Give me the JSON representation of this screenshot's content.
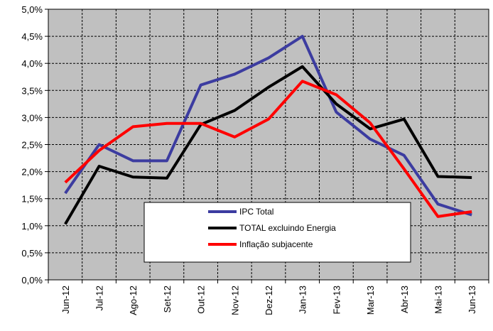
{
  "chart_data": {
    "type": "line",
    "categories": [
      "Jun-12",
      "Jul-12",
      "Ago-12",
      "Set-12",
      "Out-12",
      "Nov-12",
      "Dez-12",
      "Jan-13",
      "Fev-13",
      "Mar-13",
      "Abr-13",
      "Mai-13",
      "Jun-13"
    ],
    "series": [
      {
        "name": "IPC Total",
        "color": "#3c3ca0",
        "values": [
          1.6,
          2.5,
          2.2,
          2.2,
          3.6,
          3.8,
          4.1,
          4.5,
          3.1,
          2.6,
          2.3,
          1.4,
          1.2
        ]
      },
      {
        "name": "TOTAL excluindo Energia",
        "color": "#000000",
        "values": [
          1.03,
          2.1,
          1.9,
          1.88,
          2.87,
          3.13,
          3.56,
          3.94,
          3.25,
          2.79,
          2.97,
          1.91,
          1.89
        ]
      },
      {
        "name": "Inflação subjacente",
        "color": "#ff0000",
        "values": [
          1.8,
          2.39,
          2.83,
          2.89,
          2.89,
          2.64,
          2.97,
          3.67,
          3.42,
          2.9,
          2.05,
          1.17,
          1.26
        ]
      }
    ],
    "ylim": [
      0,
      5
    ],
    "yticks": [
      {
        "value": 0,
        "label": "0,0%"
      },
      {
        "value": 0.5,
        "label": "0,5%"
      },
      {
        "value": 1,
        "label": "1,0%"
      },
      {
        "value": 1.5,
        "label": "1,5%"
      },
      {
        "value": 2,
        "label": "2,0%"
      },
      {
        "value": 2.5,
        "label": "2,5%"
      },
      {
        "value": 3,
        "label": "3,0%"
      },
      {
        "value": 3.5,
        "label": "3,5%"
      },
      {
        "value": 4,
        "label": "4,0%"
      },
      {
        "value": 4.5,
        "label": "4,5%"
      },
      {
        "value": 5,
        "label": "5,0%"
      }
    ],
    "grid": true
  }
}
